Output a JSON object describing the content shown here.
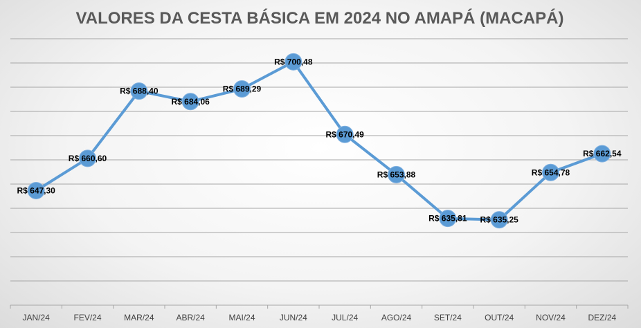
{
  "chart_data": {
    "type": "line",
    "title": "VALORES DA CESTA BÁSICA EM 2024 NO AMAPÁ (MACAPÁ)",
    "categories": [
      "JAN/24",
      "FEV/24",
      "MAR/24",
      "ABR/24",
      "MAI/24",
      "JUN/24",
      "JUL/24",
      "AGO/24",
      "SET/24",
      "OUT/24",
      "NOV/24",
      "DEZ/24"
    ],
    "values": [
      647.3,
      660.6,
      688.4,
      684.06,
      689.29,
      700.48,
      670.49,
      653.88,
      635.81,
      635.25,
      654.78,
      662.54
    ],
    "data_labels": [
      "R$ 647,30",
      "R$ 660,60",
      "R$ 688,40",
      "R$ 684,06",
      "R$ 689,29",
      "R$ 700,48",
      "R$ 670,49",
      "R$ 653,88",
      "R$ 635,81",
      "R$ 635,25",
      "R$ 654,78",
      "R$ 662,54"
    ],
    "ylim": [
      600,
      710
    ],
    "grid": true,
    "line_color": "#5b9bd5",
    "marker_color": "#5b9bd5"
  }
}
